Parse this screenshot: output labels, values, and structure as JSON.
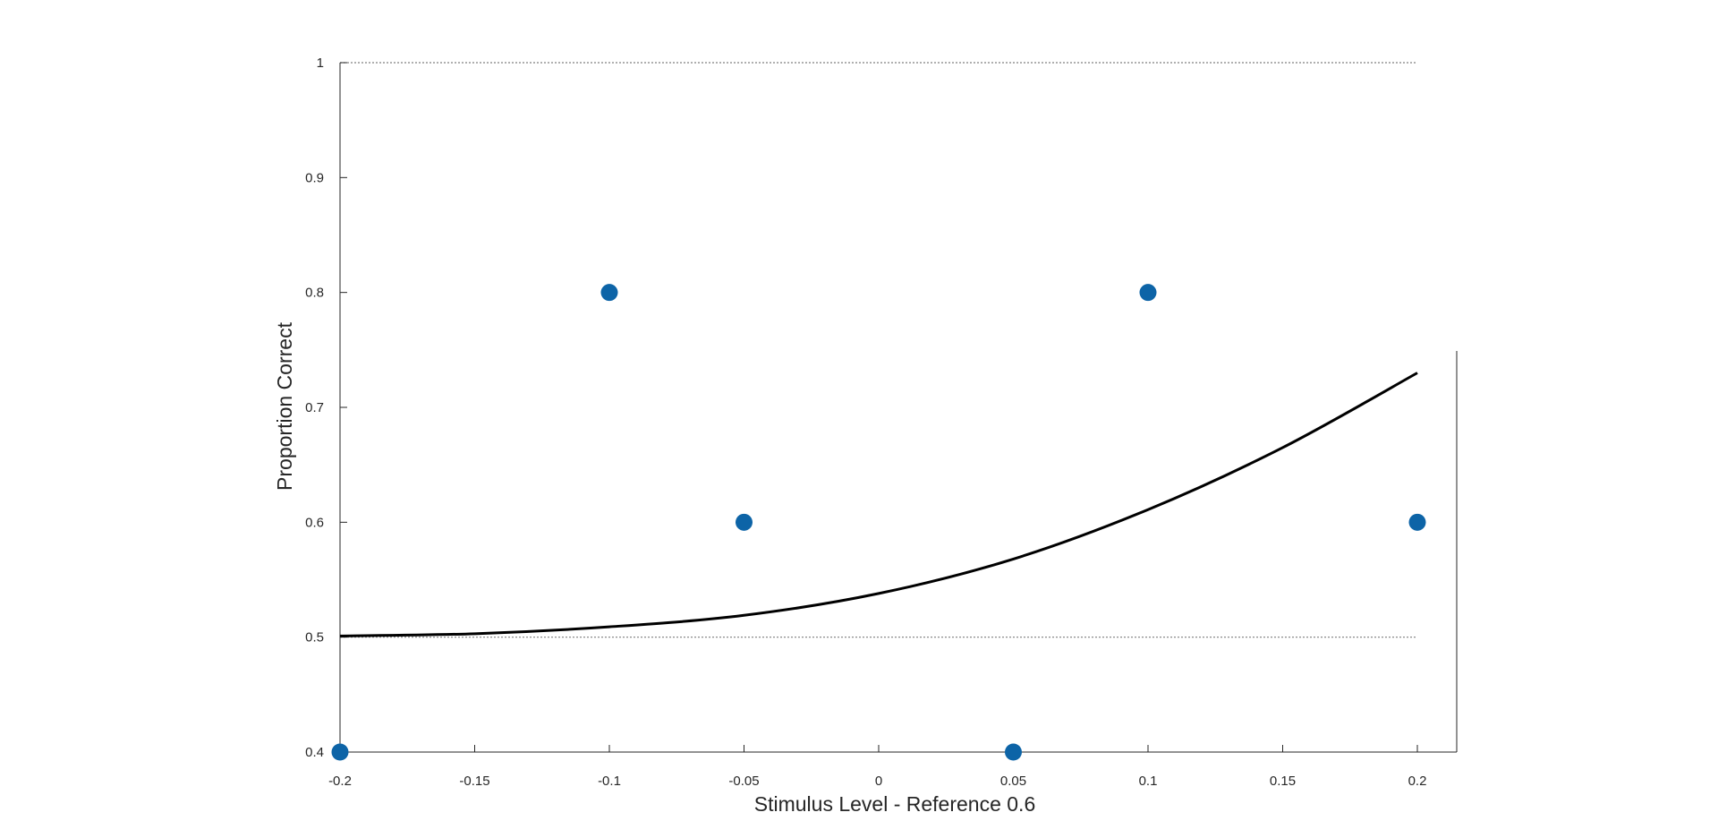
{
  "chart_data": {
    "type": "scatter",
    "title": "",
    "xlabel": "Stimulus Level - Reference 0.6",
    "ylabel": "Proportion Correct",
    "xlim": [
      -0.2,
      0.215
    ],
    "ylim": [
      0.4,
      1.0
    ],
    "x_ticks": [
      "-0.2",
      "-0.15",
      "-0.1",
      "-0.05",
      "0",
      "0.05",
      "0.1",
      "0.15",
      "0.2"
    ],
    "y_ticks": [
      "0.4",
      "0.5",
      "0.6",
      "0.7",
      "0.8",
      "0.9",
      "1"
    ],
    "grid": false,
    "reference_lines": [
      0.5,
      1.0
    ],
    "marker_color": "#0d64a7",
    "fit_color": "#000000",
    "points": [
      {
        "x": -0.2,
        "y": 0.4
      },
      {
        "x": -0.1,
        "y": 0.8
      },
      {
        "x": -0.05,
        "y": 0.6
      },
      {
        "x": 0.05,
        "y": 0.4
      },
      {
        "x": 0.1,
        "y": 0.8
      },
      {
        "x": 0.2,
        "y": 0.6
      }
    ],
    "fit_curve": {
      "x": [
        -0.2,
        -0.15,
        -0.1,
        -0.05,
        0,
        0.05,
        0.1,
        0.15,
        0.2
      ],
      "y": [
        0.501,
        0.503,
        0.509,
        0.519,
        0.538,
        0.568,
        0.611,
        0.665,
        0.73
      ]
    }
  }
}
